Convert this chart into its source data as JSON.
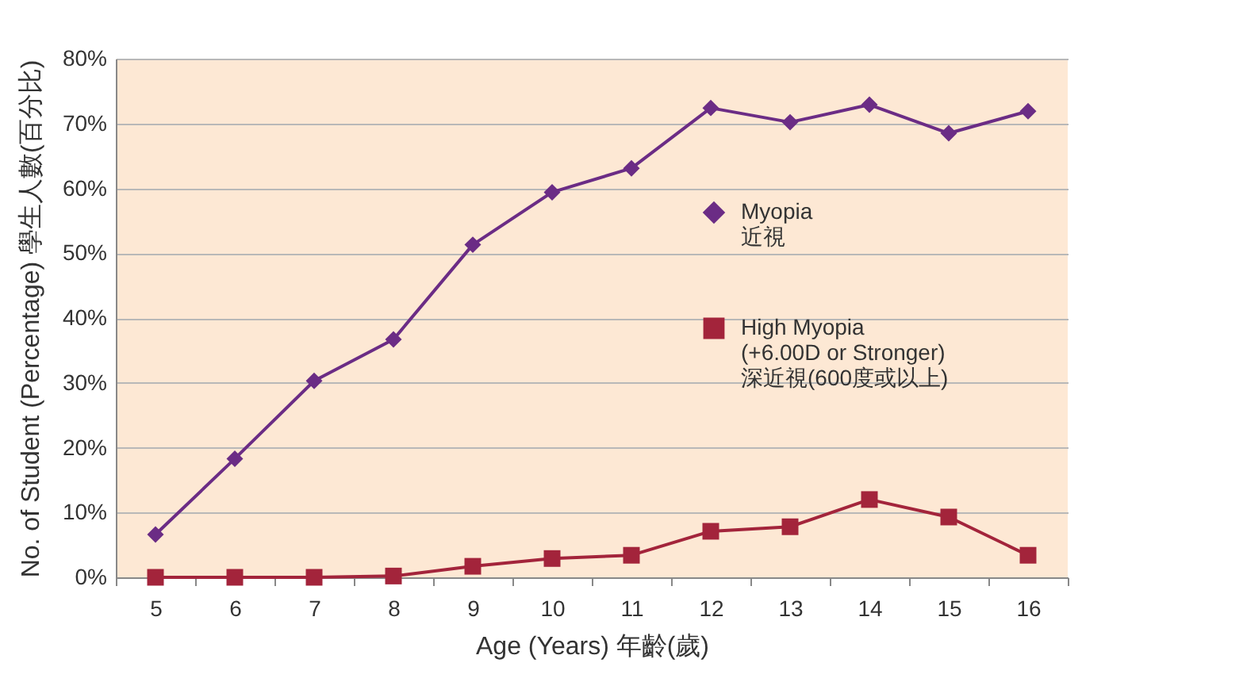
{
  "chart_data": {
    "type": "line",
    "xlabel": "Age (Years)  年齡(歲)",
    "ylabel": "No. of Student (Percentage)  學生人數(百分比)",
    "categories": [
      "5",
      "6",
      "7",
      "8",
      "9",
      "10",
      "11",
      "12",
      "13",
      "14",
      "15",
      "16"
    ],
    "series": [
      {
        "name": "Myopia\n近視",
        "color": "#6b2c85",
        "marker": "diamond",
        "values": [
          6.6,
          18.3,
          30.3,
          36.7,
          51.3,
          59.4,
          63.1,
          72.4,
          70.2,
          72.9,
          68.5,
          71.9
        ]
      },
      {
        "name": "High Myopia\n(+6.00D or Stronger)\n深近視(600度或以上)",
        "color": "#a3243b",
        "marker": "square",
        "values": [
          0,
          0,
          0,
          0.2,
          1.7,
          2.9,
          3.4,
          7.1,
          7.8,
          12,
          9.3,
          3.4
        ]
      }
    ],
    "ylim": [
      0,
      80
    ],
    "yticks": [
      {
        "value": 0,
        "label": "0%"
      },
      {
        "value": 10,
        "label": "10%"
      },
      {
        "value": 20,
        "label": "20%"
      },
      {
        "value": 30,
        "label": "30%"
      },
      {
        "value": 40,
        "label": "40%"
      },
      {
        "value": 50,
        "label": "50%"
      },
      {
        "value": 60,
        "label": "60%"
      },
      {
        "value": 70,
        "label": "70%"
      },
      {
        "value": 80,
        "label": "80%"
      }
    ],
    "grid": "y",
    "legend": "right"
  }
}
